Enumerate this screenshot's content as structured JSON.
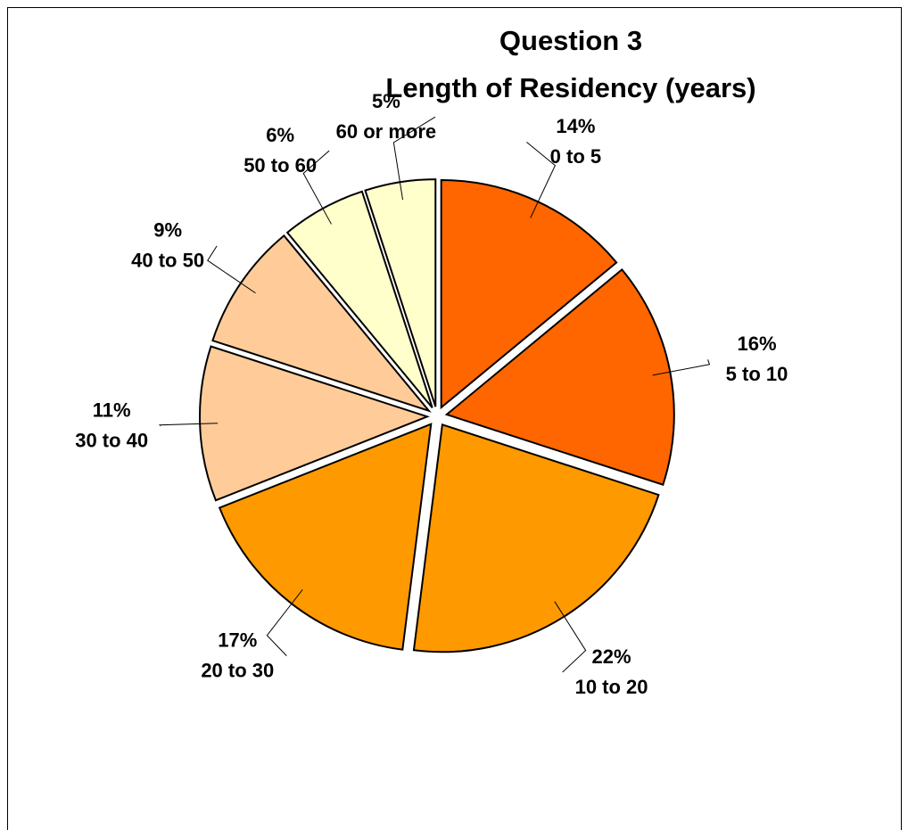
{
  "chart_data": {
    "type": "pie",
    "title": "Question 3",
    "subtitle": "Length of Residency (years)",
    "categories": [
      "0 to 5",
      "5 to 10",
      "10 to 20",
      "20 to 30",
      "30 to 40",
      "40 to 50",
      "50 to 60",
      "60 or more"
    ],
    "values": [
      14,
      16,
      22,
      17,
      11,
      9,
      6,
      5
    ],
    "value_labels": [
      "14%",
      "16%",
      "22%",
      "17%",
      "11%",
      "9%",
      "6%",
      "5%"
    ],
    "colors": [
      "#ff6600",
      "#ff6600",
      "#ff9900",
      "#ff9900",
      "#ffcc99",
      "#ffcc99",
      "#ffffcc",
      "#ffffcc"
    ]
  }
}
